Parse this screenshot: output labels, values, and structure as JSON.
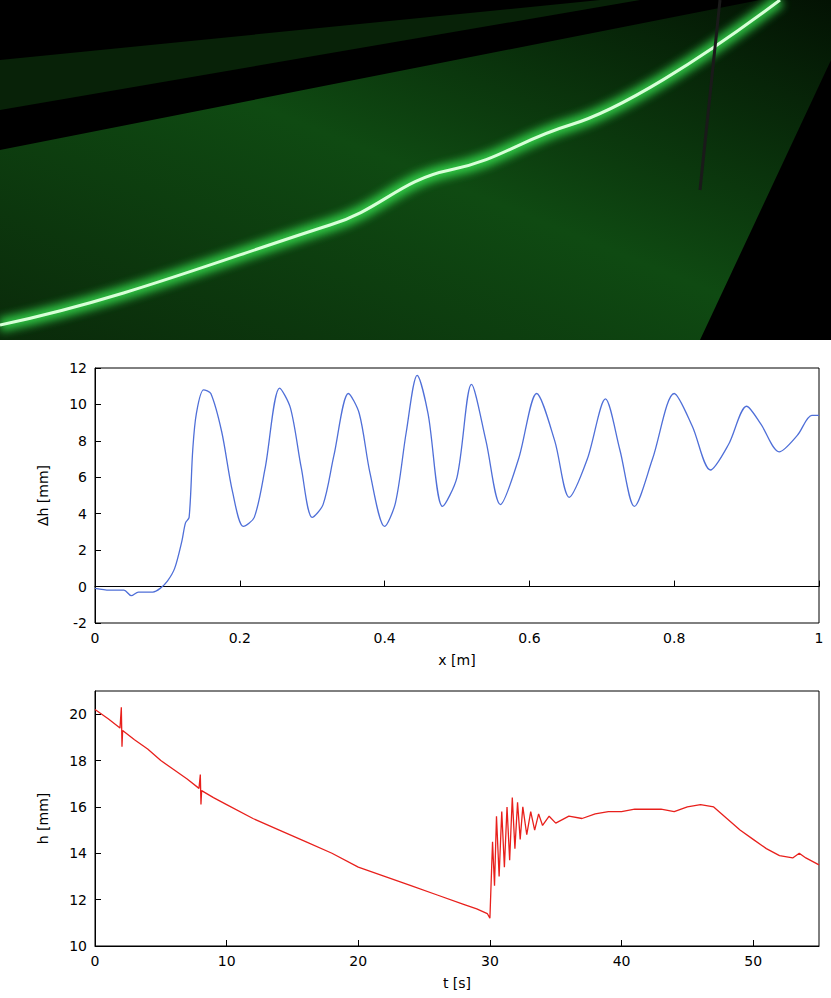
{
  "chart_data": [
    {
      "type": "line",
      "x_label": "x [m]",
      "y_label": "Δh [mm]",
      "xlim": [
        0,
        1
      ],
      "xticks": [
        0,
        0.2,
        0.4,
        0.6,
        0.8,
        1
      ],
      "ylim": [
        -2,
        12
      ],
      "yticks": [
        -2,
        0,
        2,
        4,
        6,
        8,
        10,
        12
      ],
      "grid": false,
      "series": [
        {
          "color": "#4f6fd8",
          "x": [
            0,
            0.02,
            0.04,
            0.05,
            0.06,
            0.08,
            0.09,
            0.1,
            0.11,
            0.12,
            0.125,
            0.13,
            0.135,
            0.14,
            0.15,
            0.16,
            0.175,
            0.19,
            0.205,
            0.22,
            0.235,
            0.255,
            0.27,
            0.285,
            0.3,
            0.315,
            0.33,
            0.35,
            0.365,
            0.38,
            0.4,
            0.415,
            0.43,
            0.445,
            0.46,
            0.48,
            0.5,
            0.52,
            0.54,
            0.56,
            0.585,
            0.61,
            0.635,
            0.655,
            0.68,
            0.705,
            0.725,
            0.745,
            0.77,
            0.8,
            0.825,
            0.85,
            0.875,
            0.9,
            0.92,
            0.945,
            0.97,
            0.99,
            1.0
          ],
          "values": [
            -0.1,
            -0.2,
            -0.2,
            -0.5,
            -0.3,
            -0.3,
            -0.1,
            0.3,
            1.0,
            2.5,
            3.5,
            3.8,
            7.5,
            9.5,
            10.8,
            10.6,
            8.5,
            5.2,
            3.3,
            3.8,
            6.5,
            10.9,
            9.8,
            6.5,
            3.8,
            4.5,
            7.2,
            10.6,
            9.5,
            6.2,
            3.3,
            4.6,
            8.5,
            11.6,
            9.5,
            4.4,
            6.0,
            11.1,
            8.0,
            4.5,
            7.0,
            10.6,
            8.0,
            4.9,
            7.0,
            10.3,
            7.5,
            4.4,
            7.0,
            10.6,
            8.8,
            6.4,
            7.8,
            9.9,
            8.9,
            7.4,
            8.3,
            9.4,
            9.4
          ]
        }
      ]
    },
    {
      "type": "line",
      "x_label": "t [s]",
      "y_label": "h [mm]",
      "xlim": [
        0,
        55
      ],
      "xticks": [
        0,
        10,
        20,
        30,
        40,
        50
      ],
      "ylim": [
        10,
        21
      ],
      "yticks": [
        10,
        12,
        14,
        16,
        18,
        20
      ],
      "grid": false,
      "series": [
        {
          "color": "#e8201c",
          "x": [
            0,
            1,
            1.9,
            2.0,
            2.05,
            2.1,
            3,
            4,
            5,
            6,
            7,
            7.9,
            8.0,
            8.05,
            8.1,
            9,
            10,
            12,
            14,
            16,
            18,
            20,
            22,
            24,
            26,
            28,
            29,
            29.8,
            30.0,
            30.2,
            30.35,
            30.5,
            30.7,
            30.9,
            31.1,
            31.3,
            31.5,
            31.7,
            31.9,
            32.1,
            32.3,
            32.5,
            32.8,
            33.1,
            33.4,
            33.7,
            34.0,
            34.5,
            35,
            36,
            37,
            38,
            39,
            40,
            41,
            42,
            43,
            44,
            45,
            46,
            47,
            48,
            49,
            50,
            51,
            52,
            53,
            53.5,
            54,
            55
          ],
          "values": [
            20.2,
            19.8,
            19.4,
            20.3,
            18.6,
            19.3,
            18.9,
            18.5,
            18.0,
            17.6,
            17.2,
            16.8,
            17.4,
            16.1,
            16.7,
            16.4,
            16.1,
            15.5,
            15.0,
            14.5,
            14.0,
            13.4,
            13.0,
            12.6,
            12.2,
            11.8,
            11.6,
            11.4,
            11.2,
            14.5,
            12.6,
            15.6,
            13.0,
            15.8,
            13.4,
            16.0,
            13.7,
            16.4,
            14.2,
            16.2,
            14.6,
            16.0,
            14.8,
            15.8,
            15.0,
            15.7,
            15.2,
            15.6,
            15.3,
            15.6,
            15.5,
            15.7,
            15.8,
            15.8,
            15.9,
            15.9,
            15.9,
            15.8,
            16.0,
            16.1,
            16.0,
            15.5,
            15.0,
            14.6,
            14.2,
            13.9,
            13.8,
            14.0,
            13.8,
            13.5
          ]
        }
      ]
    }
  ]
}
